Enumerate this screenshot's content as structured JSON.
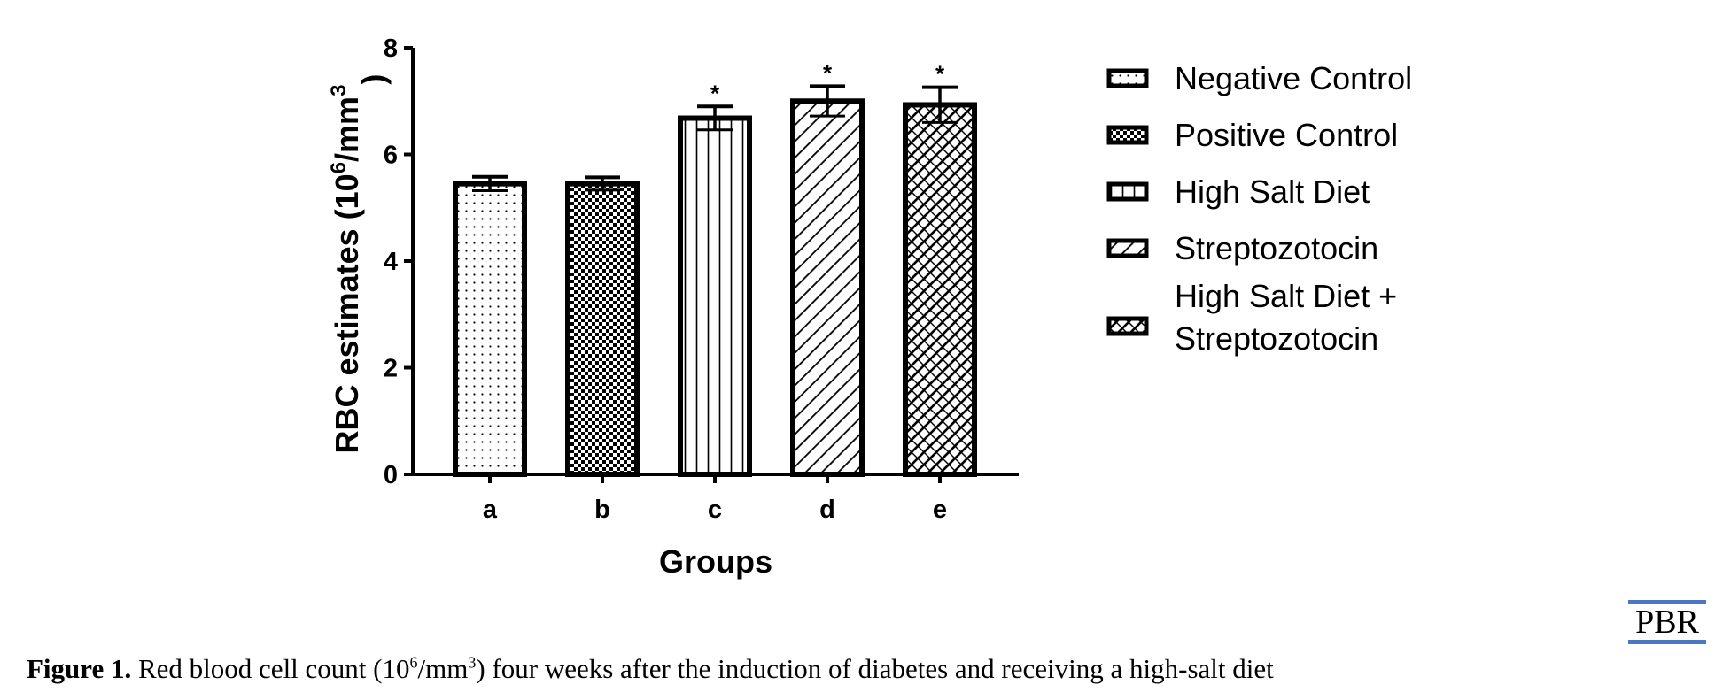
{
  "chart_data": {
    "type": "bar",
    "categories": [
      "a",
      "b",
      "c",
      "d",
      "e"
    ],
    "values": [
      5.45,
      5.45,
      6.68,
      7.0,
      6.93
    ],
    "errors": [
      0.13,
      0.12,
      0.22,
      0.28,
      0.33
    ],
    "significance": [
      "",
      "",
      "*",
      "*",
      "*"
    ],
    "xlabel": "Groups",
    "ylabel_main": "RBC estimates (10",
    "ylabel_sup1": "6",
    "ylabel_mid": "/mm",
    "ylabel_sup2": "3",
    "ylabel_end": ")",
    "ylim": [
      0,
      8
    ],
    "yticks": [
      "0",
      "2",
      "4",
      "6",
      "8"
    ],
    "grid": false,
    "legend_position": "right",
    "legend": [
      {
        "label": "Negative Control",
        "pattern": "dots"
      },
      {
        "label": "Positive Control",
        "pattern": "checker"
      },
      {
        "label": "High Salt Diet",
        "pattern": "vertical"
      },
      {
        "label": "Streptozotocin",
        "pattern": "diagonal"
      },
      {
        "label": "High Salt Diet +",
        "label2": "Streptozotocin",
        "pattern": "crosshatch"
      }
    ]
  },
  "caption": {
    "label": "Figure 1.",
    "text_part1": " Red blood cell count (10",
    "sup1": "6",
    "text_part2": "/mm",
    "sup2": "3",
    "text_part3": ") four weeks after the induction of diabetes and receiving a high-salt diet"
  },
  "logo": {
    "text": "PBR",
    "color": "#4a79c2"
  }
}
